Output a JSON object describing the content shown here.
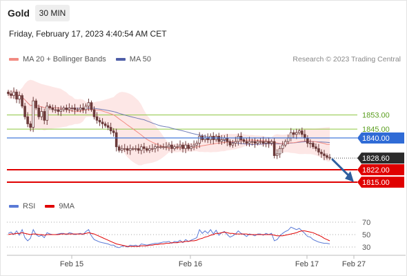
{
  "header": {
    "instrument": "Gold",
    "timeframe": "30 MIN",
    "datetime": "Friday, February 17, 2023 4:40:54 AM CET"
  },
  "legend": {
    "ma20_label": "MA 20 + Bollinger Bands",
    "ma50_label": "MA 50",
    "copyright": "Research © 2023 Trading Central",
    "rsi_label": "RSI",
    "ma9_label": "9MA"
  },
  "colors": {
    "ma20": "#f28b82",
    "band_fill": "#fde3e2",
    "ma50": "#4f5fa8",
    "candle": "#6b3a3a",
    "green_level": "#8cc63f",
    "blue_level": "#2f6bd6",
    "red_level": "#e00000",
    "rsi": "#5a7ad6",
    "rsi_ma9": "#e00000",
    "forecast_arrow": "#2e5e9e"
  },
  "chart_data": [
    {
      "type": "candlestick",
      "yrange": [
        1806,
        1872
      ],
      "x_ticks": [
        "Feb 15",
        "Feb 16",
        "Feb 17",
        "Feb 27"
      ],
      "levels": [
        {
          "value": 1853.0,
          "label": "1853.00",
          "kind": "resistance",
          "color": "green"
        },
        {
          "value": 1845.0,
          "label": "1845.00",
          "kind": "resistance",
          "color": "green"
        },
        {
          "value": 1840.0,
          "label": "1840.00",
          "kind": "pivot",
          "color": "blue"
        },
        {
          "value": 1822.0,
          "label": "1822.00",
          "kind": "support",
          "color": "red"
        },
        {
          "value": 1815.0,
          "label": "1815.00",
          "kind": "support",
          "color": "red"
        }
      ],
      "last_price": {
        "value": 1828.6,
        "label": "1828.60"
      },
      "forecast": {
        "direction": "down",
        "from": 1828.6,
        "to": 1815.0
      },
      "closes": [
        1865,
        1864,
        1866,
        1862,
        1864,
        1858,
        1852,
        1848,
        1846,
        1861,
        1857,
        1852,
        1855,
        1850,
        1858,
        1857,
        1856,
        1856,
        1855,
        1856,
        1857,
        1856,
        1857,
        1857,
        1856,
        1856,
        1857,
        1856,
        1858,
        1860,
        1856,
        1852,
        1850,
        1849,
        1848,
        1847,
        1846,
        1844,
        1843,
        1835,
        1833,
        1834,
        1834,
        1833,
        1834,
        1834,
        1834,
        1833,
        1835,
        1834,
        1833,
        1834,
        1834,
        1835,
        1835,
        1835,
        1835,
        1835,
        1836,
        1834,
        1835,
        1835,
        1836,
        1834,
        1836,
        1834,
        1835,
        1836,
        1837,
        1841,
        1839,
        1840,
        1839,
        1841,
        1839,
        1841,
        1838,
        1839,
        1840,
        1838,
        1836,
        1837,
        1838,
        1841,
        1839,
        1838,
        1837,
        1838,
        1838,
        1837,
        1838,
        1838,
        1837,
        1838,
        1837,
        1838,
        1830,
        1831,
        1834,
        1836,
        1838,
        1840,
        1843,
        1842,
        1843,
        1844,
        1842,
        1840,
        1837,
        1837,
        1835,
        1834,
        1832,
        1831,
        1830,
        1829,
        1829
      ]
    },
    {
      "type": "line",
      "title": "RSI",
      "yrange": [
        20,
        80
      ],
      "y_ticks": [
        70,
        50,
        30
      ],
      "series": [
        {
          "name": "RSI",
          "values": [
            52,
            54,
            50,
            56,
            49,
            58,
            45,
            40,
            44,
            58,
            50,
            47,
            49,
            45,
            53,
            51,
            50,
            50,
            51,
            52,
            52,
            50,
            53,
            52,
            50,
            51,
            52,
            50,
            55,
            58,
            48,
            42,
            40,
            38,
            37,
            36,
            35,
            33,
            33,
            30,
            29,
            31,
            32,
            30,
            33,
            32,
            33,
            31,
            35,
            34,
            33,
            34,
            35,
            36,
            36,
            37,
            38,
            38,
            39,
            36,
            39,
            38,
            41,
            37,
            42,
            39,
            41,
            43,
            45,
            58,
            52,
            56,
            52,
            58,
            51,
            57,
            49,
            53,
            55,
            50,
            46,
            48,
            51,
            56,
            52,
            50,
            47,
            51,
            50,
            48,
            51,
            51,
            49,
            52,
            50,
            52,
            40,
            42,
            48,
            52,
            55,
            57,
            62,
            60,
            58,
            60,
            56,
            52,
            47,
            46,
            42,
            40,
            38,
            37,
            36,
            36,
            35
          ]
        },
        {
          "name": "9MA",
          "values": [
            50,
            51,
            51,
            52,
            52,
            53,
            52,
            51,
            50,
            51,
            51,
            50,
            50,
            49,
            50,
            50,
            50,
            50,
            50,
            51,
            51,
            51,
            51,
            51,
            51,
            51,
            51,
            51,
            52,
            53,
            52,
            51,
            49,
            47,
            45,
            43,
            41,
            39,
            37,
            35,
            34,
            33,
            32,
            31,
            31,
            31,
            31,
            31,
            32,
            32,
            32,
            33,
            33,
            34,
            34,
            35,
            35,
            36,
            36,
            37,
            37,
            37,
            38,
            38,
            39,
            39,
            40,
            40,
            41,
            43,
            44,
            46,
            47,
            49,
            50,
            52,
            52,
            53,
            54,
            53,
            52,
            52,
            51,
            51,
            51,
            51,
            51,
            50,
            50,
            50,
            50,
            50,
            50,
            50,
            50,
            50,
            49,
            48,
            48,
            48,
            49,
            50,
            51,
            52,
            53,
            55,
            56,
            56,
            55,
            54,
            53,
            51,
            49,
            47,
            44,
            42,
            40
          ]
        }
      ]
    }
  ]
}
